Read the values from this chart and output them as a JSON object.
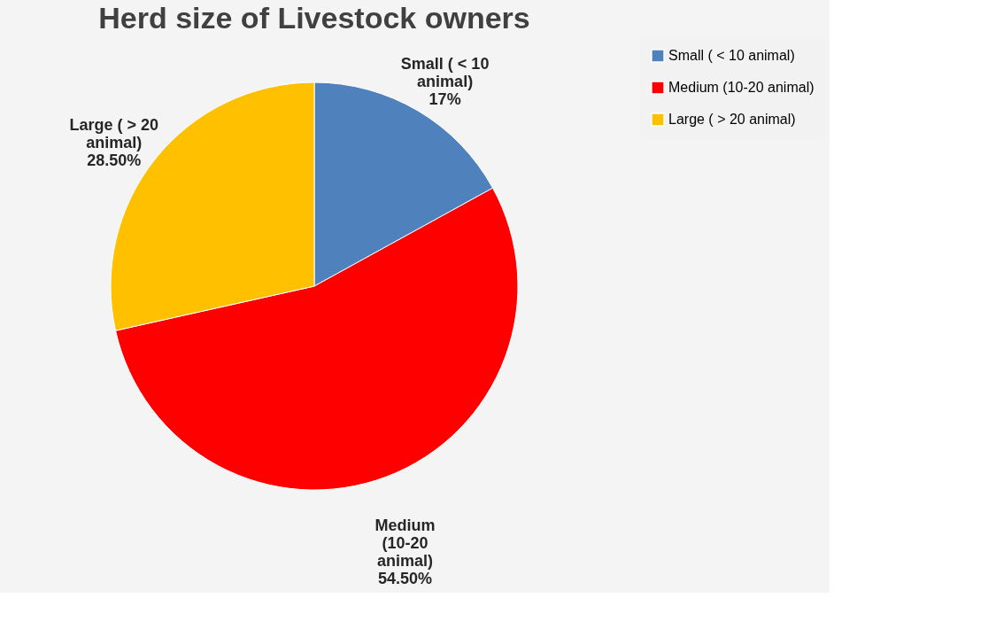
{
  "chart_data": {
    "type": "pie",
    "title": "Herd size of Livestock owners",
    "categories": [
      "Small ( < 10 animal)",
      "Medium (10-20 animal)",
      "Large ( > 20 animal)"
    ],
    "values": [
      17,
      54.5,
      28.5
    ],
    "colors": [
      "#4f81bd",
      "#ff0000",
      "#ffc000"
    ],
    "value_labels": [
      "17%",
      "54.50%",
      "28.50%"
    ],
    "legend": "right"
  }
}
